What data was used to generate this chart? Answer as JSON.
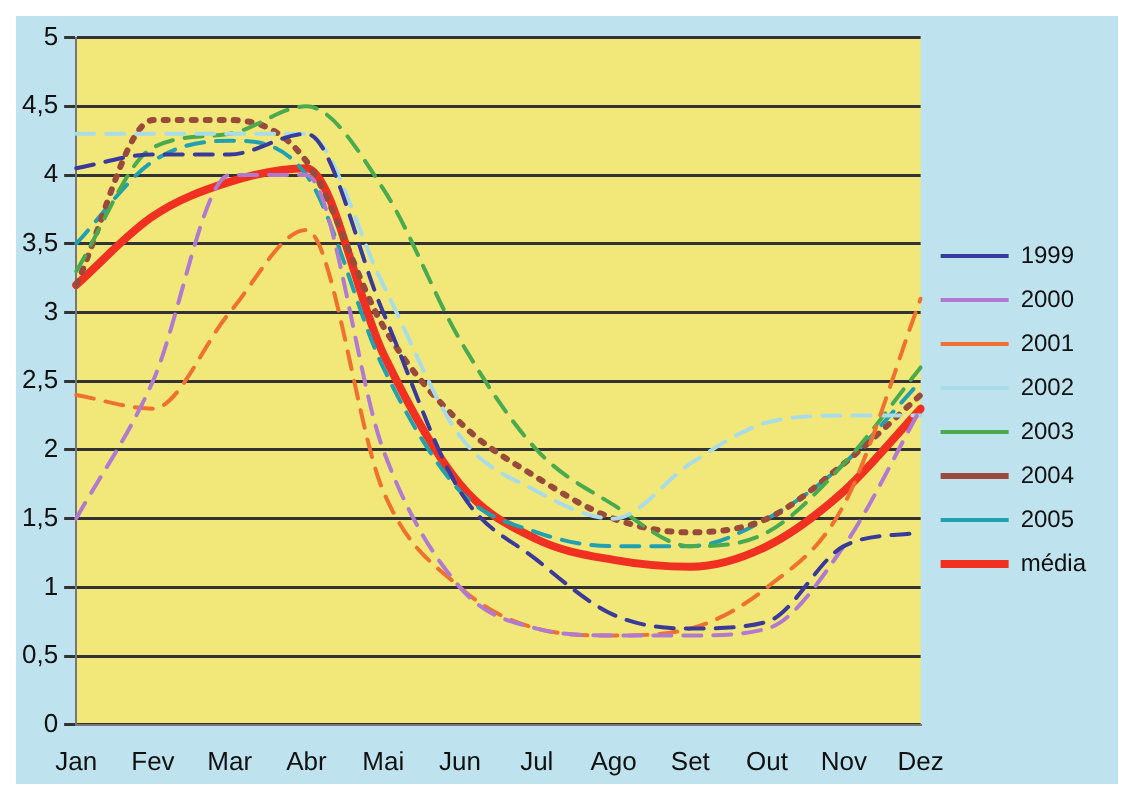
{
  "chart_data": {
    "type": "line",
    "categories": [
      "Jan",
      "Fev",
      "Mar",
      "Abr",
      "Mai",
      "Jun",
      "Jul",
      "Ago",
      "Set",
      "Out",
      "Nov",
      "Dez"
    ],
    "ylim": [
      0,
      5
    ],
    "yticks": [
      0,
      {
        "value": 0.5,
        "label": "0,5"
      },
      1,
      {
        "value": 1.5,
        "label": "1,5"
      },
      2,
      {
        "value": 2.5,
        "label": "2,5"
      },
      3,
      {
        "value": 3.5,
        "label": "3,5"
      },
      4,
      {
        "value": 4.5,
        "label": "4,5"
      },
      5
    ],
    "grid": "y",
    "legend": "right",
    "marker": "none",
    "series": [
      {
        "name": "1999",
        "color": "#3a3a9a",
        "line_style": "dashed",
        "values": [
          4.05,
          4.15,
          4.15,
          4.3,
          3.0,
          1.7,
          1.2,
          0.8,
          0.7,
          0.75,
          1.3,
          1.4
        ]
      },
      {
        "name": "2000",
        "color": "#b07ad0",
        "line_style": "dashed",
        "values": [
          1.5,
          2.5,
          4.0,
          4.0,
          2.0,
          1.0,
          0.7,
          0.65,
          0.65,
          0.7,
          1.3,
          2.3
        ]
      },
      {
        "name": "2001",
        "color": "#f07030",
        "line_style": "dashed",
        "values": [
          2.4,
          2.3,
          3.0,
          3.6,
          1.7,
          1.0,
          0.7,
          0.65,
          0.7,
          1.0,
          1.6,
          3.1
        ]
      },
      {
        "name": "2002",
        "color": "#a8dce8",
        "line_style": "dashed",
        "values": [
          4.3,
          4.3,
          4.3,
          4.3,
          3.2,
          2.1,
          1.7,
          1.5,
          1.9,
          2.2,
          2.25,
          2.25
        ]
      },
      {
        "name": "2003",
        "color": "#4aaa50",
        "line_style": "dashed",
        "values": [
          3.3,
          4.2,
          4.3,
          4.5,
          3.9,
          2.8,
          2.0,
          1.6,
          1.3,
          1.4,
          1.9,
          2.6
        ]
      },
      {
        "name": "2004",
        "color": "#9a4a3a",
        "line_style": "dotted",
        "values": [
          3.2,
          4.4,
          4.4,
          4.1,
          2.9,
          2.2,
          1.8,
          1.5,
          1.4,
          1.5,
          1.9,
          2.4
        ]
      },
      {
        "name": "2005",
        "color": "#20a0b0",
        "line_style": "dashed",
        "values": [
          3.5,
          4.1,
          4.25,
          4.0,
          2.6,
          1.7,
          1.4,
          1.3,
          1.3,
          1.5,
          1.9,
          2.5
        ]
      },
      {
        "name": "média",
        "color": "#f03020",
        "line_style": "solid",
        "values": [
          3.2,
          3.7,
          3.95,
          4.05,
          2.7,
          1.75,
          1.35,
          1.2,
          1.15,
          1.3,
          1.7,
          2.3
        ]
      }
    ]
  }
}
